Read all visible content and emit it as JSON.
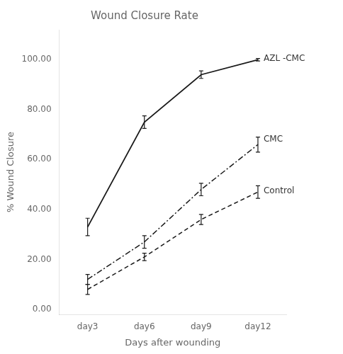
{
  "chart_data": {
    "type": "line",
    "title": "Wound Closure Rate",
    "x_label": "Days after wounding",
    "y_label": "% Wound Closure",
    "categories": [
      "day3",
      "day6",
      "day9",
      "day12"
    ],
    "marker": "none",
    "series": [
      {
        "name": "AZL -CMC",
        "color": "#1a1a1a",
        "line_style": "solid",
        "values": [
          33.0,
          75.0,
          94.0,
          100.0
        ],
        "errors": [
          3.5,
          2.5,
          1.5,
          0.5
        ]
      },
      {
        "name": "CMC",
        "color": "#1a1a1a",
        "line_style": "dashdot",
        "values": [
          12.0,
          27.0,
          48.0,
          66.0
        ],
        "errors": [
          2.0,
          2.5,
          2.5,
          3.0
        ]
      },
      {
        "name": "Control",
        "color": "#1a1a1a",
        "line_style": "dashed",
        "values": [
          8.0,
          21.0,
          36.0,
          47.0
        ],
        "errors": [
          2.0,
          1.5,
          2.0,
          2.5
        ]
      }
    ],
    "ylim": [
      -2.0,
      112.0
    ],
    "yticks": [
      {
        "value": 0.0,
        "label": "0.00"
      },
      {
        "value": 20.0,
        "label": "20.00"
      },
      {
        "value": 40.0,
        "label": "40.00"
      },
      {
        "value": 60.0,
        "label": "60.00"
      },
      {
        "value": 80.0,
        "label": "80.00"
      },
      {
        "value": 100.0,
        "label": "100.00"
      }
    ],
    "grid": false,
    "annotations": [
      {
        "text": "AZL -CMC",
        "x": "day12",
        "y": 100.5
      },
      {
        "text": "CMC",
        "x": "day12",
        "y": 68.0
      },
      {
        "text": "Control",
        "x": "day12",
        "y": 47.5
      }
    ]
  }
}
